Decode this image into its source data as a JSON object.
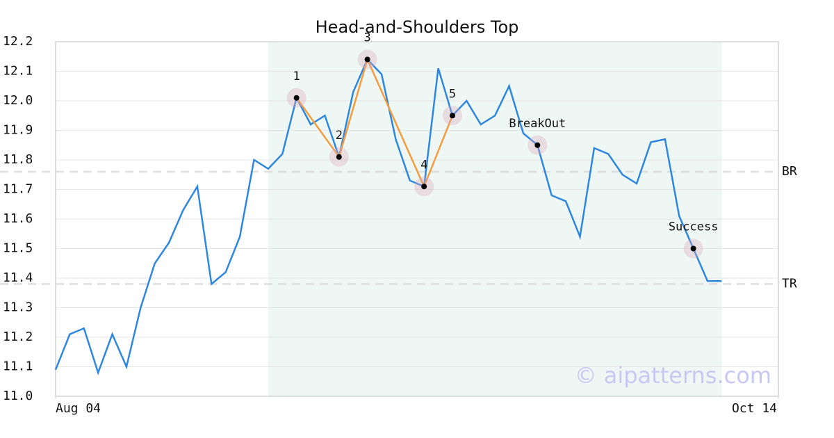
{
  "chart_data": {
    "type": "line",
    "title": "Head-and-Shoulders Top",
    "x": [
      0,
      1,
      2,
      3,
      4,
      5,
      6,
      7,
      8,
      9,
      10,
      11,
      12,
      13,
      14,
      15,
      16,
      17,
      18,
      19,
      20,
      21,
      22,
      23,
      24,
      25,
      26,
      27,
      28,
      29,
      30,
      31,
      32,
      33,
      34,
      35,
      36,
      37,
      38,
      39,
      40,
      41,
      42,
      43,
      44,
      45,
      46,
      47
    ],
    "values": [
      11.09,
      11.21,
      11.23,
      11.08,
      11.21,
      11.1,
      11.3,
      11.45,
      11.52,
      11.63,
      11.71,
      11.38,
      11.42,
      11.54,
      11.8,
      11.77,
      11.82,
      12.01,
      11.92,
      11.95,
      11.81,
      12.03,
      12.14,
      12.09,
      11.87,
      11.73,
      11.71,
      12.11,
      11.95,
      12.0,
      11.92,
      11.95,
      12.05,
      11.89,
      11.85,
      11.68,
      11.66,
      11.54,
      11.84,
      11.82,
      11.75,
      11.72,
      11.86,
      11.87,
      11.61,
      11.5,
      11.39,
      11.39
    ],
    "color": "#2e86de",
    "points": [
      {
        "label": "1",
        "x": 17,
        "y": 12.01
      },
      {
        "label": "2",
        "x": 20,
        "y": 11.81
      },
      {
        "label": "3",
        "x": 22,
        "y": 12.14
      },
      {
        "label": "4",
        "x": 26,
        "y": 11.71
      },
      {
        "label": "5",
        "x": 28,
        "y": 11.95
      },
      {
        "label": "BreakOut",
        "x": 34,
        "y": 11.85
      },
      {
        "label": "Success",
        "x": 45,
        "y": 11.5
      }
    ],
    "pattern_color": "#f39c40",
    "levels": [
      {
        "label": "BR",
        "value": 11.76
      },
      {
        "label": "TR",
        "value": 11.38
      }
    ],
    "highlight_range": [
      15,
      47
    ],
    "highlight_color": "#eef7f3",
    "xlim": [
      0,
      51
    ],
    "xticks": [
      {
        "value": 0,
        "label": "Aug 04"
      },
      {
        "value": 51,
        "label": "Oct 14"
      }
    ],
    "ylim": [
      11.0,
      12.2
    ],
    "yticks": [
      {
        "value": 11,
        "label": "11.0"
      },
      11.1,
      11.2,
      11.3,
      11.4,
      11.5,
      11.6,
      11.7,
      11.8,
      11.9,
      {
        "value": 12,
        "label": "12.0"
      },
      12.1,
      12.2
    ],
    "grid": true,
    "watermark": "© aipatterns.com"
  }
}
